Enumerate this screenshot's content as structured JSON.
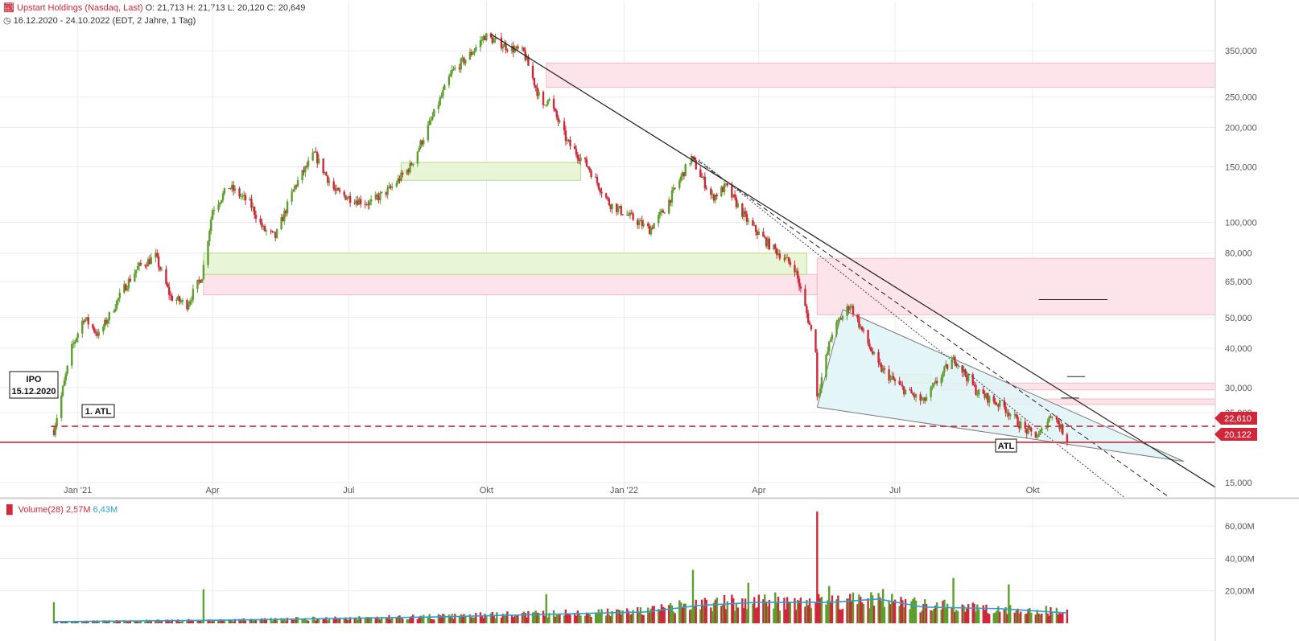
{
  "header": {
    "title_name": "Upstart Holdings (Nasdaq, Last)",
    "ohlc": "O: 21,713  H: 21,713  L: 20,120  C: 20,649",
    "range": "16.12.2020 - 24.10.2022   (EDT, 2 Jahre, 1 Tag)"
  },
  "volume_header": {
    "label": "Volume(28)",
    "value": "2,57M",
    "ma_value": "6,43M"
  },
  "annotations": {
    "ipo_line1": "IPO",
    "ipo_line2": "15.12.2020",
    "first_atl": "1. ATL",
    "atl": "ATL"
  },
  "price_tags": {
    "upper": "22,610",
    "lower": "20,122"
  },
  "colors": {
    "up": "#5d9e2c",
    "down": "#d0283a",
    "volume_ma": "#2b9fd8",
    "support_line": "#d0283a",
    "demand_zone": "#e9f5d7",
    "supply_zone": "#fde4ea",
    "wedge_fill": "#dff3f7"
  },
  "chart_data": [
    {
      "type": "line",
      "title": "Upstart Holdings (Nasdaq, Last)",
      "scale": "log",
      "y_ticks": [
        "350,000",
        "250,000",
        "200,000",
        "150,000",
        "100,000",
        "80,000",
        "65,000",
        "50,000",
        "40,000",
        "30,000",
        "25,000",
        "15,000"
      ],
      "y_tick_values": [
        350,
        250,
        200,
        150,
        100,
        80,
        65,
        50,
        40,
        30,
        25,
        15
      ],
      "x_ticks": [
        "Jan '21",
        "Apr",
        "Jul",
        "Okt",
        "Jan '22",
        "Apr",
        "Jul",
        "Okt"
      ],
      "x_tick_dates": [
        "2021-01-01",
        "2021-04-01",
        "2021-07-01",
        "2021-10-01",
        "2022-01-01",
        "2022-04-01",
        "2022-07-01",
        "2022-10-01"
      ],
      "ylim": [
        13.5,
        420
      ],
      "xlim": [
        "2020-11-10",
        "2023-01-31"
      ],
      "grid": true,
      "series": [
        {
          "x": [
            "2020-12-16",
            "2020-12-28",
            "2021-01-05",
            "2021-01-15",
            "2021-02-01",
            "2021-02-10",
            "2021-02-22",
            "2021-03-04",
            "2021-03-15",
            "2021-03-25",
            "2021-04-01",
            "2021-04-12",
            "2021-04-26",
            "2021-05-05",
            "2021-05-13",
            "2021-05-26",
            "2021-06-08",
            "2021-06-22",
            "2021-07-01",
            "2021-07-15",
            "2021-07-29",
            "2021-08-11",
            "2021-08-25",
            "2021-09-08",
            "2021-09-20",
            "2021-09-30",
            "2021-10-15",
            "2021-10-26",
            "2021-11-08",
            "2021-11-11",
            "2021-11-24",
            "2021-12-08",
            "2021-12-22",
            "2022-01-04",
            "2022-01-18",
            "2022-01-28",
            "2022-02-10",
            "2022-02-15",
            "2022-03-01",
            "2022-03-10",
            "2022-03-25",
            "2022-04-08",
            "2022-04-25",
            "2022-05-09",
            "2022-05-10",
            "2022-05-20",
            "2022-06-01",
            "2022-06-20",
            "2022-07-05",
            "2022-07-20",
            "2022-08-05",
            "2022-08-10",
            "2022-08-25",
            "2022-09-12",
            "2022-09-26",
            "2022-10-05",
            "2022-10-14",
            "2022-10-24"
          ],
          "y": [
            22,
            40,
            50,
            44,
            62,
            72,
            78,
            58,
            55,
            68,
            110,
            130,
            115,
            95,
            90,
            130,
            165,
            125,
            120,
            115,
            128,
            150,
            210,
            300,
            340,
            390,
            360,
            345,
            230,
            250,
            180,
            150,
            115,
            105,
            95,
            110,
            145,
            160,
            120,
            130,
            100,
            85,
            72,
            40,
            28,
            45,
            55,
            35,
            30,
            27,
            35,
            37,
            29,
            26,
            22,
            21,
            25,
            20.6
          ]
        }
      ],
      "horizontal_lines": [
        22.61,
        20.12
      ]
    },
    {
      "type": "bar",
      "title": "Volume(28)",
      "y_ticks": [
        "60,00M",
        "40,00M",
        "20,00M"
      ],
      "y_tick_values": [
        60,
        40,
        20
      ],
      "ylim": [
        0,
        72
      ],
      "spikes": [
        {
          "date": "2020-12-16",
          "value": 13,
          "up": true
        },
        {
          "date": "2021-03-26",
          "value": 21,
          "up": true
        },
        {
          "date": "2021-11-10",
          "value": 18,
          "up": true
        },
        {
          "date": "2022-02-16",
          "value": 33,
          "up": true
        },
        {
          "date": "2022-03-25",
          "value": 25,
          "up": true
        },
        {
          "date": "2022-05-10",
          "value": 69,
          "up": false
        },
        {
          "date": "2022-05-18",
          "value": 23,
          "up": true
        },
        {
          "date": "2022-08-09",
          "value": 28,
          "up": true
        },
        {
          "date": "2022-09-15",
          "value": 24,
          "up": true
        }
      ],
      "ma_series": [
        {
          "date": "2020-12-16",
          "value": 1
        },
        {
          "date": "2021-04-15",
          "value": 2
        },
        {
          "date": "2021-09-01",
          "value": 4
        },
        {
          "date": "2022-01-15",
          "value": 7
        },
        {
          "date": "2022-02-20",
          "value": 11
        },
        {
          "date": "2022-04-01",
          "value": 13
        },
        {
          "date": "2022-05-20",
          "value": 13
        },
        {
          "date": "2022-06-20",
          "value": 15
        },
        {
          "date": "2022-07-20",
          "value": 10
        },
        {
          "date": "2022-09-10",
          "value": 9
        },
        {
          "date": "2022-10-24",
          "value": 6.4
        }
      ]
    }
  ]
}
